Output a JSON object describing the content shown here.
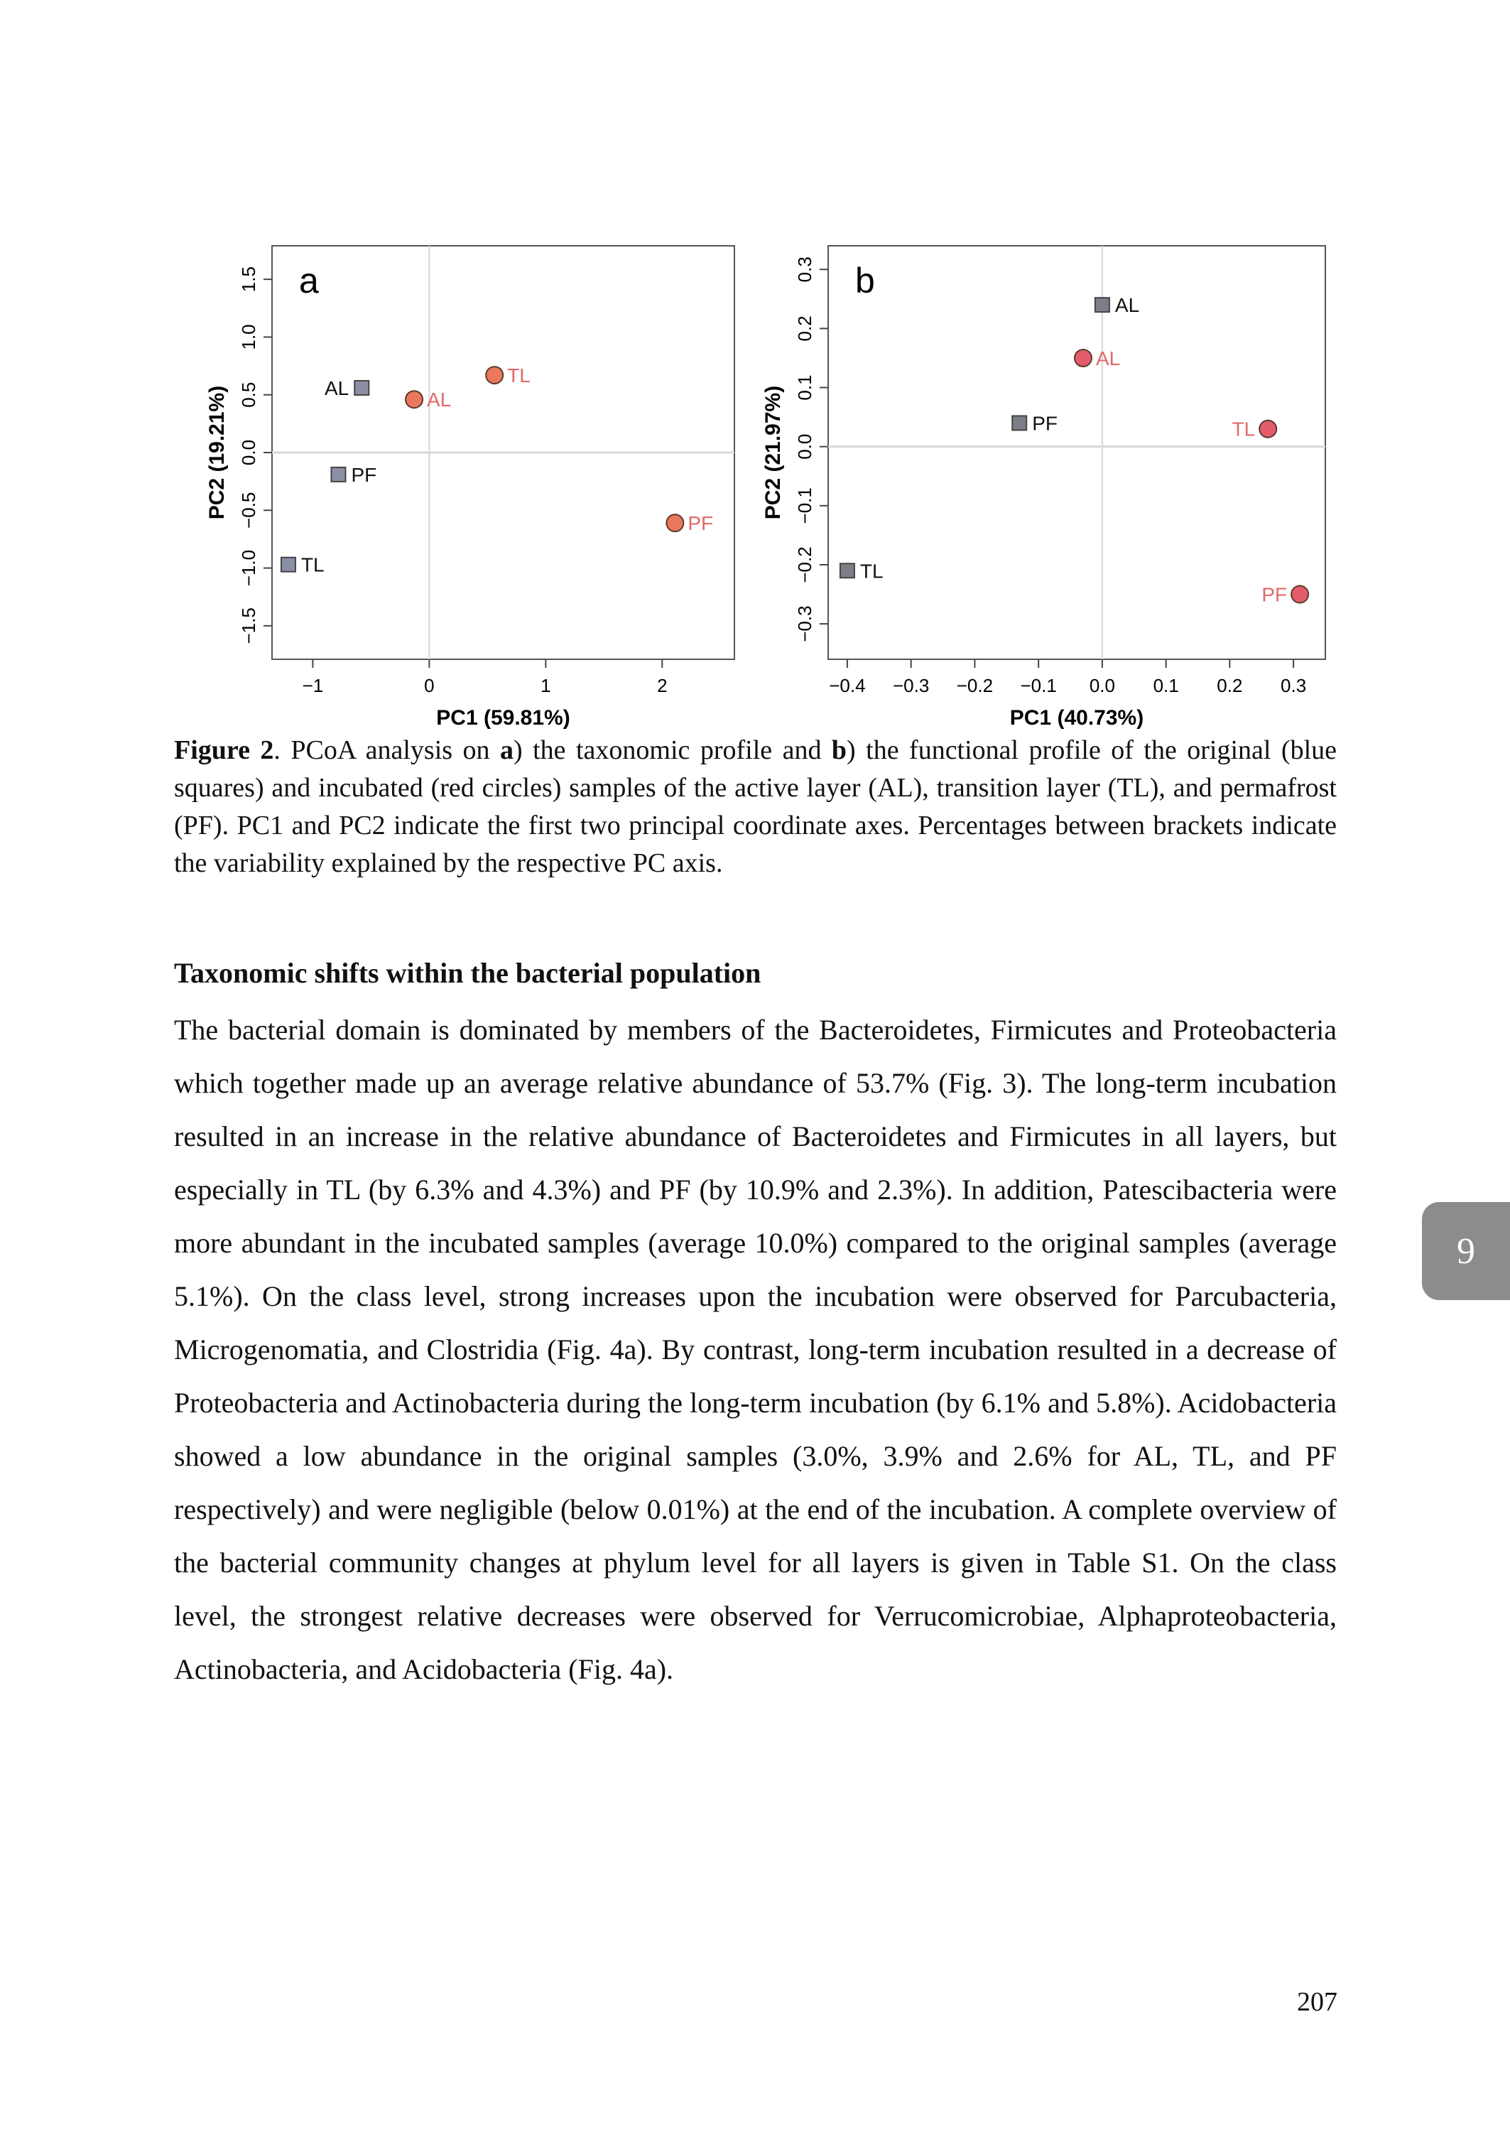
{
  "chart_data": [
    {
      "type": "scatter",
      "panel_label": "a",
      "xlabel": "PC1 (59.81%)",
      "ylabel": "PC2 (19.21%)",
      "xlim": [
        -1.35,
        2.62
      ],
      "ylim": [
        -1.79,
        1.79
      ],
      "xticks": [
        "-1",
        "0",
        "1",
        "2"
      ],
      "yticks": [
        "-1.5",
        "-1.0",
        "-0.5",
        "0.0",
        "0.5",
        "1.0",
        "1.5"
      ],
      "reference_lines": {
        "x": 0,
        "y": 0
      },
      "series": [
        {
          "group": "original",
          "marker": "square",
          "color": "#8b8fa6",
          "points": [
            {
              "label": "AL",
              "x": -0.58,
              "y": 0.56,
              "label_side": "left"
            },
            {
              "label": "PF",
              "x": -0.78,
              "y": -0.19,
              "label_side": "right"
            },
            {
              "label": "TL",
              "x": -1.21,
              "y": -0.97,
              "label_side": "right"
            }
          ]
        },
        {
          "group": "incubated",
          "marker": "circle",
          "color": "#e9785c",
          "points": [
            {
              "label": "AL",
              "x": -0.13,
              "y": 0.46,
              "label_side": "right"
            },
            {
              "label": "TL",
              "x": 0.56,
              "y": 0.67,
              "label_side": "right"
            },
            {
              "label": "PF",
              "x": 2.11,
              "y": -0.61,
              "label_side": "right"
            }
          ]
        }
      ]
    },
    {
      "type": "scatter",
      "panel_label": "b",
      "xlabel": "PC1 (40.73%)",
      "ylabel": "PC2 (21.97%)",
      "xlim": [
        -0.43,
        0.35
      ],
      "ylim": [
        -0.36,
        0.34
      ],
      "xticks": [
        "-0.4",
        "-0.3",
        "-0.2",
        "-0.1",
        "0.0",
        "0.1",
        "0.2",
        "0.3"
      ],
      "yticks": [
        "-0.3",
        "-0.2",
        "-0.1",
        "0.0",
        "0.1",
        "0.2",
        "0.3"
      ],
      "reference_lines": {
        "x": 0,
        "y": 0
      },
      "series": [
        {
          "group": "original",
          "marker": "square",
          "color": "#7d7f88",
          "points": [
            {
              "label": "AL",
              "x": 0.0,
              "y": 0.24,
              "label_side": "right"
            },
            {
              "label": "PF",
              "x": -0.13,
              "y": 0.04,
              "label_side": "right"
            },
            {
              "label": "TL",
              "x": -0.4,
              "y": -0.21,
              "label_side": "right"
            }
          ]
        },
        {
          "group": "incubated",
          "marker": "circle",
          "color": "#e45c6c",
          "points": [
            {
              "label": "AL",
              "x": -0.03,
              "y": 0.15,
              "label_side": "right"
            },
            {
              "label": "TL",
              "x": 0.26,
              "y": 0.03,
              "label_side": "left"
            },
            {
              "label": "PF",
              "x": 0.31,
              "y": -0.25,
              "label_side": "left"
            }
          ]
        }
      ]
    }
  ],
  "caption": {
    "segments": [
      {
        "text": "Figure 2",
        "bold": true
      },
      {
        "text": ". PCoA analysis on ",
        "bold": false
      },
      {
        "text": "a",
        "bold": true
      },
      {
        "text": ") the taxonomic profile and ",
        "bold": false
      },
      {
        "text": "b",
        "bold": true
      },
      {
        "text": ") the functional profile of the original (blue squares) and incubated (red circles) samples of the active layer (AL), transition layer (TL), and permafrost (PF). PC1 and PC2 indicate the first two principal coordinate axes. Percentages between brackets indicate the variability explained by the respective PC axis.",
        "bold": false
      }
    ]
  },
  "section": {
    "heading": "Taxonomic shifts within the bacterial population",
    "paragraph": "The bacterial domain is dominated by members of the Bacteroidetes, Firmicutes and Proteobacteria which together made up an average relative abundance of 53.7% (Fig. 3). The long-term incubation resulted in an increase in the relative abundance of Bacteroidetes and Firmicutes in all layers, but especially in TL (by 6.3% and 4.3%) and PF (by 10.9% and 2.3%). In addition, Patescibacteria were more abundant in the incubated samples (average 10.0%) compared to the original samples (average 5.1%). On the class level, strong increases upon the incubation were observed for Parcubacteria, Microgenomatia, and Clostridia (Fig. 4a). By contrast, long-term incubation resulted in a decrease of Proteobacteria and Actinobacteria during the long-term incubation (by 6.1% and 5.8%). Acidobacteria showed a low abundance in the original samples (3.0%, 3.9% and 2.6% for AL, TL, and PF respectively) and were negligible (below 0.01%) at the end of the incubation. A complete overview of the bacterial community changes at phylum level for all layers is given in Table S1. On the class level, the strongest relative decreases were observed for Verrucomicrobiae, Alphaproteobacteria, Actinobacteria, and Acidobacteria (Fig. 4a)."
  },
  "chapter_tab": "9",
  "page_number": "207",
  "colors": {
    "tab": "#8c8c8c",
    "incubated_label": "#e06a6a"
  }
}
